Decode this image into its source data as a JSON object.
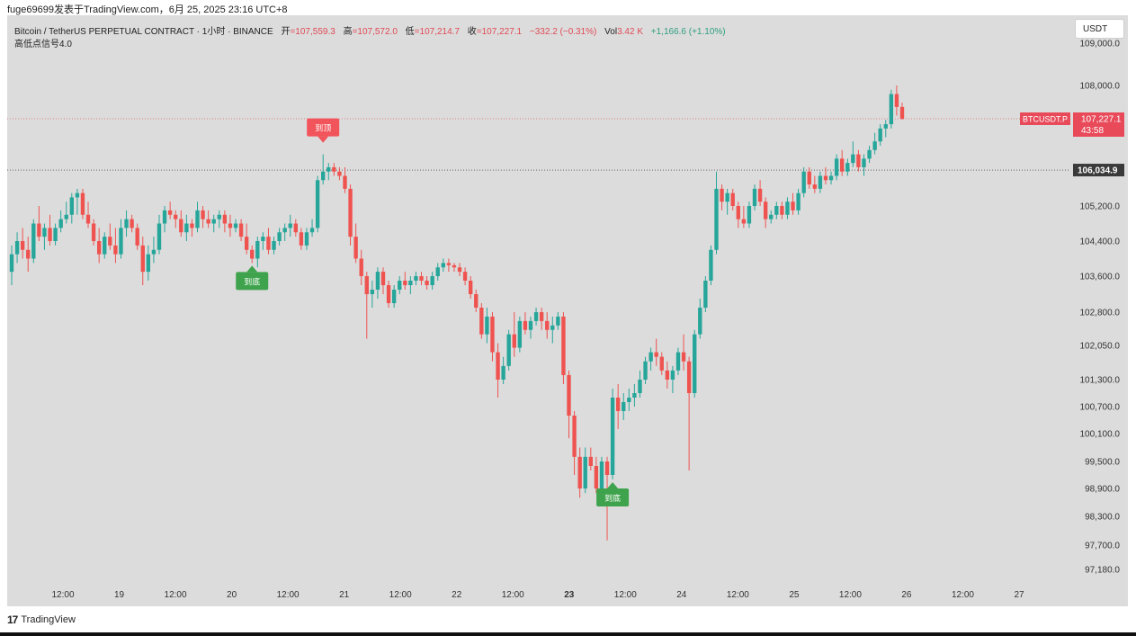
{
  "watermark": "fuge69699发表于TradingView.com，6月 25, 2025 23:16 UTC+8",
  "header": {
    "symbol": "Bitcoin / TetherUS PERPETUAL CONTRACT · 1小时 · BINANCE",
    "open_label": "开",
    "open_value": "=107,559.3",
    "high_label": "高",
    "high_value": "=107,572.0",
    "low_label": "低",
    "low_value": "=107,214.7",
    "close_label": "收",
    "close_value": "=107,227.1",
    "change": "−332.2 (−0.31%)",
    "vol_label": "Vol",
    "vol_value": "3.42 K",
    "change2": "+1,166.6 (+1.10%)",
    "indicator": "高低点信号4.0"
  },
  "currency_button": "USDT",
  "footer": {
    "logo": "17",
    "brand": "TradingView"
  },
  "colors": {
    "up": "#26a69a",
    "down": "#ef5350",
    "price_line": "#e06060",
    "level_line": "#555555",
    "top_marker": "#f2545b",
    "bottom_marker": "#3fa34d",
    "background": "#dcdcdc"
  },
  "chart_data": {
    "type": "candlestick",
    "symbol_tag": "BTCUSDT.P",
    "last_price": "107,227.1",
    "countdown": "43:58",
    "level_line_label": "106,034.9",
    "y_ticks": [
      "109,000.0",
      "108,000.0",
      "105,200.0",
      "104,400.0",
      "103,600.0",
      "102,800.0",
      "102,050.0",
      "101,300.0",
      "100,700.0",
      "100,100.0",
      "99,500.0",
      "98,900.0",
      "98,300.0",
      "97,700.0",
      "97,180.0"
    ],
    "y_tick_values": [
      109000,
      108000,
      105200,
      104400,
      103600,
      102800,
      102050,
      101300,
      100700,
      100100,
      99500,
      98900,
      98300,
      97700,
      97180
    ],
    "x_ticks": [
      "12:00",
      "19",
      "12:00",
      "20",
      "12:00",
      "21",
      "12:00",
      "22",
      "12:00",
      "23",
      "12:00",
      "24",
      "12:00",
      "25",
      "12:00",
      "26",
      "12:00",
      "27"
    ],
    "x_tick_bold": "23",
    "markers": [
      {
        "label": "到顶",
        "type": "top"
      },
      {
        "label": "到底",
        "type": "bottom"
      },
      {
        "label": "到底",
        "type": "bottom"
      }
    ],
    "candles": [
      [
        103700,
        104300,
        103400,
        104100
      ],
      [
        104100,
        104600,
        103900,
        104400
      ],
      [
        104400,
        104700,
        104000,
        104200
      ],
      [
        104200,
        104500,
        103700,
        104000
      ],
      [
        104000,
        104900,
        103900,
        104800
      ],
      [
        104800,
        105200,
        104400,
        104500
      ],
      [
        104500,
        104800,
        104200,
        104700
      ],
      [
        104700,
        105000,
        104300,
        104400
      ],
      [
        104400,
        104800,
        104300,
        104700
      ],
      [
        104700,
        105100,
        104600,
        104900
      ],
      [
        104900,
        105300,
        104800,
        105000
      ],
      [
        105000,
        105500,
        104800,
        105400
      ],
      [
        105400,
        105600,
        105000,
        105500
      ],
      [
        105500,
        105600,
        104900,
        105000
      ],
      [
        105000,
        105300,
        104700,
        104800
      ],
      [
        104800,
        104900,
        104300,
        104400
      ],
      [
        104400,
        104700,
        103900,
        104100
      ],
      [
        104100,
        104600,
        104000,
        104500
      ],
      [
        104500,
        104800,
        104200,
        104300
      ],
      [
        104300,
        104700,
        103900,
        104100
      ],
      [
        104100,
        104900,
        104000,
        104700
      ],
      [
        104700,
        105100,
        104500,
        104900
      ],
      [
        104900,
        105000,
        104600,
        104700
      ],
      [
        104700,
        104800,
        104200,
        104300
      ],
      [
        104300,
        104500,
        103400,
        103700
      ],
      [
        103700,
        104300,
        103500,
        104100
      ],
      [
        104100,
        104500,
        103900,
        104200
      ],
      [
        104200,
        105000,
        104100,
        104800
      ],
      [
        104800,
        105200,
        104600,
        105100
      ],
      [
        105100,
        105300,
        104900,
        105000
      ],
      [
        105000,
        105100,
        104700,
        104900
      ],
      [
        104900,
        105100,
        104500,
        104600
      ],
      [
        104600,
        105000,
        104400,
        104800
      ],
      [
        104800,
        104900,
        104500,
        104700
      ],
      [
        104700,
        105300,
        104600,
        105100
      ],
      [
        105100,
        105200,
        104700,
        104900
      ],
      [
        104900,
        105100,
        104700,
        104800
      ],
      [
        104800,
        105000,
        104600,
        104900
      ],
      [
        104900,
        105100,
        104700,
        105000
      ],
      [
        105000,
        105100,
        104600,
        104800
      ],
      [
        104800,
        105000,
        104500,
        104700
      ],
      [
        104700,
        104900,
        104600,
        104800
      ],
      [
        104800,
        104900,
        104400,
        104500
      ],
      [
        104500,
        104800,
        104100,
        104200
      ],
      [
        104200,
        104300,
        103900,
        104000
      ],
      [
        104000,
        104500,
        103800,
        104400
      ],
      [
        104400,
        104600,
        104200,
        104500
      ],
      [
        104500,
        104700,
        104100,
        104200
      ],
      [
        104200,
        104500,
        104100,
        104400
      ],
      [
        104400,
        104700,
        104300,
        104600
      ],
      [
        104600,
        104800,
        104400,
        104700
      ],
      [
        104700,
        105000,
        104500,
        104800
      ],
      [
        104800,
        104900,
        104500,
        104600
      ],
      [
        104600,
        104700,
        104200,
        104300
      ],
      [
        104300,
        104700,
        104200,
        104600
      ],
      [
        104600,
        104900,
        104500,
        104700
      ],
      [
        104700,
        105900,
        104600,
        105800
      ],
      [
        105800,
        106400,
        105700,
        106000
      ],
      [
        106000,
        106200,
        105800,
        106100
      ],
      [
        106100,
        106200,
        105900,
        106000
      ],
      [
        106000,
        106100,
        105800,
        105900
      ],
      [
        105900,
        106100,
        105500,
        105600
      ],
      [
        105600,
        105700,
        104300,
        104500
      ],
      [
        104500,
        104800,
        103900,
        104000
      ],
      [
        104000,
        104200,
        103400,
        103600
      ],
      [
        103600,
        103700,
        102200,
        103200
      ],
      [
        103200,
        103500,
        102900,
        103300
      ],
      [
        103300,
        103800,
        103100,
        103700
      ],
      [
        103700,
        103800,
        103200,
        103400
      ],
      [
        103400,
        103500,
        102900,
        103000
      ],
      [
        103000,
        103400,
        102900,
        103300
      ],
      [
        103300,
        103600,
        103200,
        103500
      ],
      [
        103500,
        103700,
        103300,
        103400
      ],
      [
        103400,
        103600,
        103200,
        103500
      ],
      [
        103500,
        103700,
        103400,
        103600
      ],
      [
        103600,
        103700,
        103400,
        103500
      ],
      [
        103500,
        103600,
        103300,
        103400
      ],
      [
        103400,
        103700,
        103300,
        103600
      ],
      [
        103600,
        103900,
        103500,
        103800
      ],
      [
        103800,
        104000,
        103700,
        103900
      ],
      [
        103900,
        104000,
        103700,
        103850
      ],
      [
        103850,
        103900,
        103700,
        103800
      ],
      [
        103800,
        103900,
        103600,
        103700
      ],
      [
        103700,
        103800,
        103400,
        103500
      ],
      [
        103500,
        103600,
        103100,
        103200
      ],
      [
        103200,
        103300,
        102800,
        102900
      ],
      [
        102900,
        103000,
        102200,
        102300
      ],
      [
        102300,
        102900,
        102100,
        102700
      ],
      [
        102700,
        102800,
        101700,
        101900
      ],
      [
        101900,
        102100,
        100900,
        101300
      ],
      [
        101300,
        101800,
        101200,
        101600
      ],
      [
        101600,
        102400,
        101500,
        102300
      ],
      [
        102300,
        102800,
        101800,
        102000
      ],
      [
        102000,
        102700,
        101900,
        102600
      ],
      [
        102600,
        102800,
        102300,
        102400
      ],
      [
        102400,
        102700,
        102200,
        102600
      ],
      [
        102600,
        102900,
        102500,
        102800
      ],
      [
        102800,
        102900,
        102400,
        102600
      ],
      [
        102600,
        102800,
        102200,
        102400
      ],
      [
        102400,
        102700,
        102100,
        102500
      ],
      [
        102500,
        102800,
        102400,
        102700
      ],
      [
        102700,
        102800,
        101200,
        101400
      ],
      [
        101400,
        101500,
        100000,
        100500
      ],
      [
        100500,
        100600,
        99200,
        99600
      ],
      [
        99600,
        99800,
        98700,
        98900
      ],
      [
        98900,
        99800,
        98800,
        99600
      ],
      [
        99600,
        99800,
        99300,
        99400
      ],
      [
        99400,
        99600,
        98800,
        98900
      ],
      [
        98900,
        99600,
        98800,
        99500
      ],
      [
        99500,
        99600,
        97800,
        99200
      ],
      [
        99200,
        101100,
        99100,
        100900
      ],
      [
        100900,
        101200,
        100200,
        100600
      ],
      [
        100600,
        101000,
        100400,
        100800
      ],
      [
        100800,
        101100,
        100600,
        100900
      ],
      [
        100900,
        101200,
        100700,
        101000
      ],
      [
        101000,
        101500,
        100900,
        101300
      ],
      [
        101300,
        101800,
        101200,
        101700
      ],
      [
        101700,
        102000,
        101500,
        101900
      ],
      [
        101900,
        102200,
        101600,
        101800
      ],
      [
        101800,
        101900,
        101400,
        101500
      ],
      [
        101500,
        101700,
        101100,
        101300
      ],
      [
        101300,
        101600,
        101000,
        101500
      ],
      [
        101500,
        102000,
        101400,
        101900
      ],
      [
        101900,
        102300,
        101500,
        101700
      ],
      [
        101700,
        101800,
        99300,
        101000
      ],
      [
        101000,
        102400,
        100900,
        102300
      ],
      [
        102300,
        103100,
        102200,
        102900
      ],
      [
        102900,
        103600,
        102800,
        103500
      ],
      [
        103500,
        104300,
        103400,
        104200
      ],
      [
        104200,
        106000,
        104100,
        105600
      ],
      [
        105600,
        105700,
        105100,
        105300
      ],
      [
        105300,
        105600,
        105000,
        105500
      ],
      [
        105500,
        105600,
        105100,
        105200
      ],
      [
        105200,
        105300,
        104700,
        104900
      ],
      [
        104900,
        105200,
        104700,
        104800
      ],
      [
        104800,
        105300,
        104700,
        105200
      ],
      [
        105200,
        105700,
        105100,
        105600
      ],
      [
        105600,
        105800,
        105200,
        105300
      ],
      [
        105300,
        105400,
        104700,
        104900
      ],
      [
        104900,
        105100,
        104800,
        105000
      ],
      [
        105000,
        105300,
        104900,
        105200
      ],
      [
        105200,
        105300,
        104900,
        105000
      ],
      [
        105000,
        105400,
        104900,
        105300
      ],
      [
        105300,
        105500,
        105000,
        105100
      ],
      [
        105100,
        105600,
        105000,
        105500
      ],
      [
        105500,
        106100,
        105400,
        106000
      ],
      [
        106000,
        106100,
        105600,
        105700
      ],
      [
        105700,
        105900,
        105500,
        105600
      ],
      [
        105600,
        106000,
        105500,
        105900
      ],
      [
        105900,
        106100,
        105700,
        105800
      ],
      [
        105800,
        106000,
        105700,
        105900
      ],
      [
        105900,
        106400,
        105800,
        106300
      ],
      [
        106300,
        106500,
        105900,
        106000
      ],
      [
        106000,
        106300,
        105900,
        106200
      ],
      [
        106200,
        106700,
        106100,
        106400
      ],
      [
        106400,
        106500,
        106000,
        106100
      ],
      [
        106100,
        106400,
        105900,
        106300
      ],
      [
        106300,
        106600,
        106200,
        106500
      ],
      [
        106500,
        106900,
        106400,
        106700
      ],
      [
        106700,
        107100,
        106600,
        107000
      ],
      [
        107000,
        107200,
        106800,
        107100
      ],
      [
        107100,
        107900,
        107000,
        107800
      ],
      [
        107800,
        108000,
        107300,
        107500
      ],
      [
        107500,
        107600,
        107200,
        107227
      ]
    ]
  }
}
